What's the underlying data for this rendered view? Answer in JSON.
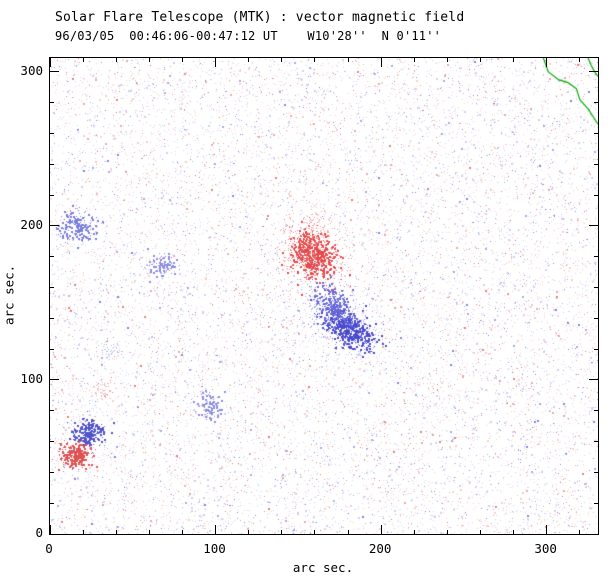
{
  "chart_data": {
    "type": "scatter",
    "title": "Solar Flare Telescope (MTK) : vector magnetic field",
    "subtitle": "96/03/05  00:46:06-00:47:12 UT    W10'28''  N 0'11''",
    "xlabel": "arc sec.",
    "ylabel": "arc sec.",
    "xlim": [
      0,
      331
    ],
    "ylim": [
      0,
      309
    ],
    "xticks": [
      0,
      100,
      200,
      300
    ],
    "yticks": [
      0,
      100,
      200,
      300
    ],
    "xtick_labels": [
      "0",
      "100",
      "200",
      "300"
    ],
    "ytick_labels": [
      "0",
      "100",
      "200",
      "300"
    ],
    "minor_tick_step": 20,
    "grid": false,
    "legend": null,
    "colors": {
      "positive_polarity": "#e04848",
      "negative_polarity": "#5050d0",
      "contour": "#00aa00",
      "axes": "#000000",
      "background": "#ffffff"
    },
    "noise": {
      "count": 13000,
      "palette": [
        {
          "color": "#f6cfcf",
          "w": 0.36
        },
        {
          "color": "#cfd2f4",
          "w": 0.36
        },
        {
          "color": "#efa6a6",
          "w": 0.09
        },
        {
          "color": "#a6aaee",
          "w": 0.09
        },
        {
          "color": "#e87f7f",
          "w": 0.05
        },
        {
          "color": "#7f86e4",
          "w": 0.05
        }
      ]
    },
    "clusters": [
      {
        "name": "main-positive-region-core",
        "color": "#e84848",
        "cx": 158,
        "cy": 182,
        "sx": 6,
        "sy": 8,
        "rot": 30,
        "n": 500,
        "size": 2
      },
      {
        "name": "main-positive-region-halo",
        "color": "#f08888",
        "cx": 157,
        "cy": 181,
        "sx": 11,
        "sy": 12,
        "rot": 30,
        "n": 320,
        "size": 1
      },
      {
        "name": "positive-north-extension",
        "color": "#f2a6a6",
        "cx": 161,
        "cy": 200,
        "sx": 5,
        "sy": 6,
        "rot": 0,
        "n": 90,
        "size": 1
      },
      {
        "name": "main-negative-region-core",
        "color": "#4a4ace",
        "cx": 181,
        "cy": 133,
        "sx": 9,
        "sy": 5,
        "rot": -35,
        "n": 460,
        "size": 2
      },
      {
        "name": "main-negative-region-arm",
        "color": "#6868da",
        "cx": 171,
        "cy": 149,
        "sx": 8,
        "sy": 5,
        "rot": -55,
        "n": 240,
        "size": 2
      },
      {
        "name": "main-negative-region-halo",
        "color": "#9a9ee8",
        "cx": 177,
        "cy": 140,
        "sx": 15,
        "sy": 10,
        "rot": -40,
        "n": 260,
        "size": 1
      },
      {
        "name": "west-negative-patch",
        "color": "#7a7ede",
        "cx": 16,
        "cy": 199,
        "sx": 6,
        "sy": 5,
        "rot": 0,
        "n": 170,
        "size": 2
      },
      {
        "name": "center-west-negative-patch",
        "color": "#8a8ee2",
        "cx": 67,
        "cy": 175,
        "sx": 4,
        "sy": 4,
        "rot": 0,
        "n": 95,
        "size": 2
      },
      {
        "name": "south-center-negative-patch",
        "color": "#8a8ee2",
        "cx": 97,
        "cy": 83,
        "sx": 3.5,
        "sy": 5,
        "rot": 0,
        "n": 85,
        "size": 2
      },
      {
        "name": "southwest-negative-patch",
        "color": "#5254cc",
        "cx": 23,
        "cy": 66,
        "sx": 5,
        "sy": 4.5,
        "rot": 0,
        "n": 230,
        "size": 2
      },
      {
        "name": "southwest-positive-patch",
        "color": "#e05252",
        "cx": 15,
        "cy": 51,
        "sx": 4.5,
        "sy": 4,
        "rot": 0,
        "n": 210,
        "size": 2
      },
      {
        "name": "faint-positive-patch",
        "color": "#efb0b0",
        "cx": 31,
        "cy": 93,
        "sx": 4,
        "sy": 3,
        "rot": 0,
        "n": 55,
        "size": 1
      },
      {
        "name": "faint-negative-patch",
        "color": "#b4b8ee",
        "cx": 38,
        "cy": 119,
        "sx": 4,
        "sy": 3,
        "rot": 0,
        "n": 45,
        "size": 1
      }
    ],
    "contours": [
      {
        "color": "#00aa00",
        "points": [
          [
            298,
            309
          ],
          [
            301,
            300
          ],
          [
            307,
            295
          ],
          [
            313,
            293
          ],
          [
            318,
            289
          ],
          [
            320,
            282
          ],
          [
            325,
            276
          ],
          [
            328,
            271
          ],
          [
            331,
            266
          ]
        ]
      },
      {
        "color": "#00aa00",
        "points": [
          [
            325,
            309
          ],
          [
            327,
            304
          ],
          [
            329,
            300
          ],
          [
            331,
            297
          ]
        ]
      }
    ]
  }
}
